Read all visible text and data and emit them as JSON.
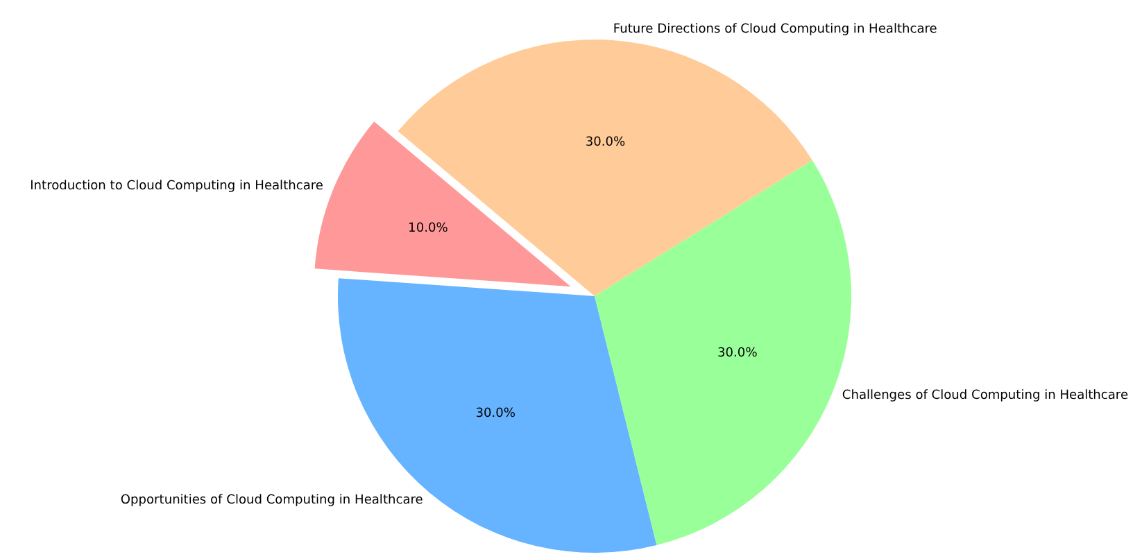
{
  "chart_data": {
    "type": "pie",
    "categories": [
      "Introduction to Cloud Computing in Healthcare",
      "Opportunities of Cloud Computing in Healthcare",
      "Challenges of Cloud Computing in Healthcare",
      "Future Directions of Cloud Computing in Healthcare"
    ],
    "values": [
      10,
      30,
      30,
      30
    ],
    "colors": [
      "#ff9999",
      "#66b3ff",
      "#99ff99",
      "#ffcc99"
    ],
    "value_labels": [
      "10.0%",
      "30.0%",
      "30.0%",
      "30.0%"
    ]
  }
}
